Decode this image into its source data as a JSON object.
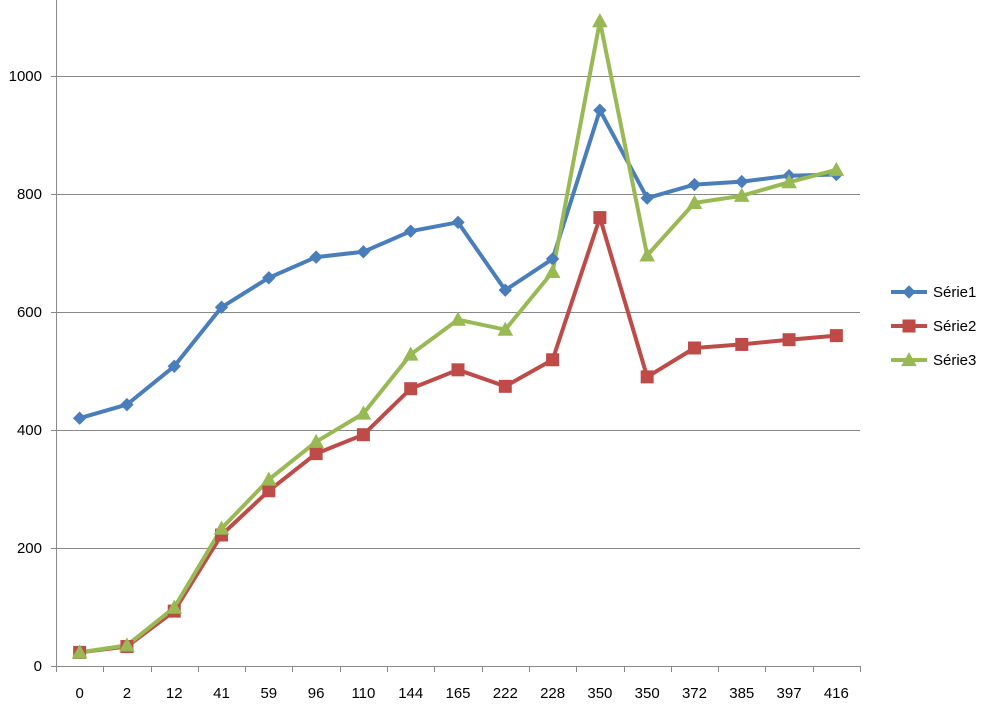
{
  "chart_data": {
    "type": "line",
    "categories": [
      "0",
      "2",
      "12",
      "41",
      "59",
      "96",
      "110",
      "144",
      "165",
      "222",
      "228",
      "350",
      "350",
      "372",
      "385",
      "397",
      "416"
    ],
    "series": [
      {
        "name": "Série1",
        "color": "#4a7ebb",
        "marker": "diamond",
        "values": [
          420,
          443,
          508,
          608,
          658,
          693,
          702,
          737,
          752,
          637,
          690,
          942,
          793,
          816,
          821,
          831,
          833
        ]
      },
      {
        "name": "Série2",
        "color": "#be4b48",
        "marker": "square",
        "values": [
          23,
          33,
          93,
          222,
          297,
          360,
          392,
          470,
          502,
          474,
          519,
          760,
          490,
          539,
          545,
          553,
          560
        ]
      },
      {
        "name": "Série3",
        "color": "#98b954",
        "marker": "triangle",
        "values": [
          23,
          35,
          99,
          233,
          316,
          380,
          428,
          528,
          587,
          570,
          668,
          1093,
          696,
          785,
          797,
          820,
          841
        ]
      }
    ],
    "ylim": [
      0,
      1100
    ],
    "yticks": [
      "0",
      "200",
      "400",
      "600",
      "800",
      "1000"
    ],
    "ytick_values": [
      0,
      200,
      400,
      600,
      800,
      1000
    ],
    "grid": true,
    "legend_position": "right"
  }
}
